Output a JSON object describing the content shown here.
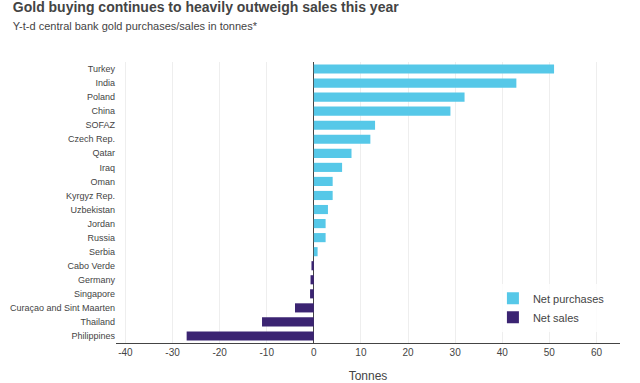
{
  "chart_data": {
    "type": "bar",
    "orientation": "horizontal",
    "title": "Gold buying continues to heavily outweigh sales this year",
    "subtitle": "Y-t-d central bank gold purchases/sales in tonnes*",
    "xlabel": "Tonnes",
    "categories": [
      "Turkey",
      "India",
      "Poland",
      "China",
      "SOFAZ",
      "Czech Rep.",
      "Qatar",
      "Iraq",
      "Oman",
      "Kyrgyz Rep.",
      "Uzbekistan",
      "Jordan",
      "Russia",
      "Serbia",
      "Cabo Verde",
      "Germany",
      "Singapore",
      "Curaçao and Sint Maarten",
      "Thailand",
      "Philippines"
    ],
    "series": [
      {
        "name": "Net purchases",
        "color": "#56c8e8",
        "values": [
          51,
          43,
          32,
          29,
          13,
          12,
          8,
          6,
          4,
          4,
          3,
          2.5,
          2.5,
          0.8,
          0,
          0,
          0,
          0,
          0,
          0
        ]
      },
      {
        "name": "Net sales",
        "color": "#3b2472",
        "values": [
          0,
          0,
          0,
          0,
          0,
          0,
          0,
          0,
          0,
          0,
          0,
          0,
          0,
          0,
          -0.5,
          -0.7,
          -0.8,
          -4,
          -11,
          -27
        ]
      }
    ],
    "xlim": [
      -42,
      65
    ],
    "xticks": [
      -40,
      -30,
      -20,
      -10,
      0,
      10,
      20,
      30,
      40,
      50,
      60
    ],
    "grid": true,
    "legend": "lower right"
  }
}
